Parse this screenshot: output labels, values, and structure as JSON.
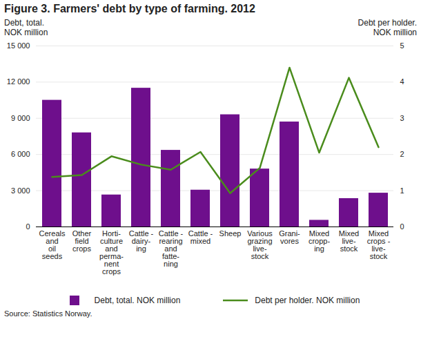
{
  "chart_data": {
    "type": "bar",
    "title": "Figure 3. Farmers' debt by type of farming. 2012",
    "y_label": "Debt, total.\nNOK million",
    "y2_label": "Debt per holder.\nNOK million",
    "categories": [
      "Cereals\nand\noil\nseeds",
      "Other\nfield\ncrops",
      "Horti-\nculture\nand\nperma-\nnent\ncrops",
      "Cattle -\ndairy-\ning",
      "Cattle -\nrearing\nand\nfatte-\nning",
      "Cattle -\nmixed",
      "Sheep",
      "Various\ngrazing\nlive-\nstock",
      "Grani-\nvores",
      "Mixed\ncropp-\ning",
      "Mixed\nlive-\nstock",
      "Mixed\ncrops -\nlive-\nstock"
    ],
    "series": [
      {
        "name": "Debt, total. NOK million",
        "type": "bar",
        "color": "#6e0f8c",
        "values": [
          10500,
          7800,
          2650,
          11500,
          6350,
          3050,
          9300,
          4800,
          8700,
          550,
          2350,
          2800
        ]
      },
      {
        "name": "Debt per holder. NOK million",
        "type": "line",
        "axis": "y2",
        "color": "#4a8c1c",
        "values": [
          1.38,
          1.43,
          1.95,
          1.72,
          1.58,
          2.07,
          0.93,
          1.63,
          4.4,
          2.05,
          4.12,
          2.2
        ]
      }
    ],
    "ylim": [
      0,
      15000
    ],
    "yticks": [
      0,
      {
        "value": 3000,
        "label": "3 000"
      },
      {
        "value": 6000,
        "label": "6 000"
      },
      {
        "value": 9000,
        "label": "9 000"
      },
      {
        "value": 12000,
        "label": "12 000"
      },
      {
        "value": 15000,
        "label": "15 000"
      }
    ],
    "y2lim": [
      0,
      5
    ],
    "y2ticks": [
      0,
      1,
      2,
      3,
      4,
      5
    ],
    "grid": true,
    "legend": "bottom",
    "source": "Source: Statistics Norway."
  }
}
